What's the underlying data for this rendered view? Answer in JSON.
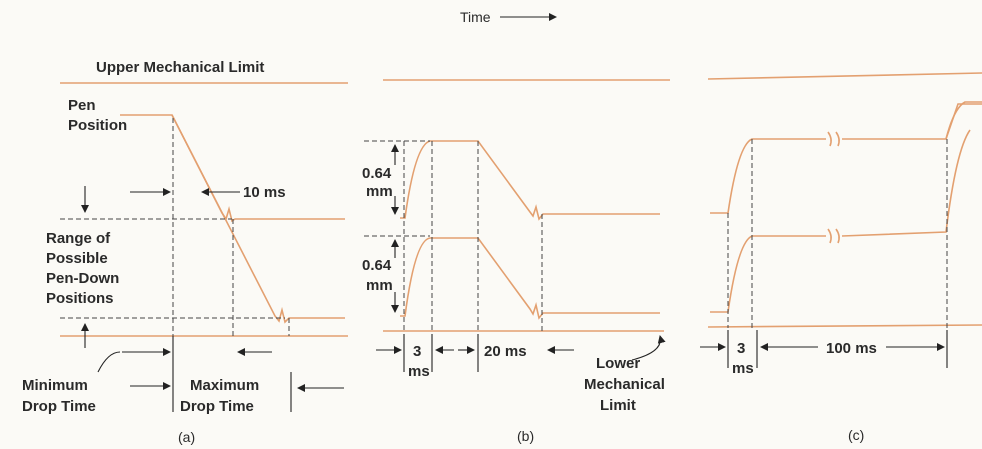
{
  "header": {
    "time_label": "Time"
  },
  "panel_a": {
    "upper_limit_label": "Upper Mechanical Limit",
    "pen_position_line1": "Pen",
    "pen_position_line2": "Position",
    "ten_ms_label": "10 ms",
    "range_line1": "Range of",
    "range_line2": "Possible",
    "range_line3": "Pen-Down",
    "range_line4": "Positions",
    "min_drop_line1": "Minimum",
    "min_drop_line2": "Drop Time",
    "max_drop_line1": "Maximum",
    "max_drop_line2": "Drop Time",
    "caption": "(a)"
  },
  "panel_b": {
    "height_top_value": "0.64",
    "height_top_unit": "mm",
    "height_bottom_value": "0.64",
    "height_bottom_unit": "mm",
    "rise_time_value": "3",
    "rise_time_unit": "ms",
    "hold_time_label": "20 ms",
    "lower_limit_line1": "Lower",
    "lower_limit_line2": "Mechanical",
    "lower_limit_line3": "Limit",
    "caption": "(b)"
  },
  "panel_c": {
    "rise_time_value": "3",
    "rise_time_unit": "ms",
    "hold_time_label": "100 ms",
    "caption": "(c)"
  },
  "colors": {
    "trace": "#e3a070",
    "ink": "#2a2a2a",
    "background": "#fbfaf6"
  }
}
